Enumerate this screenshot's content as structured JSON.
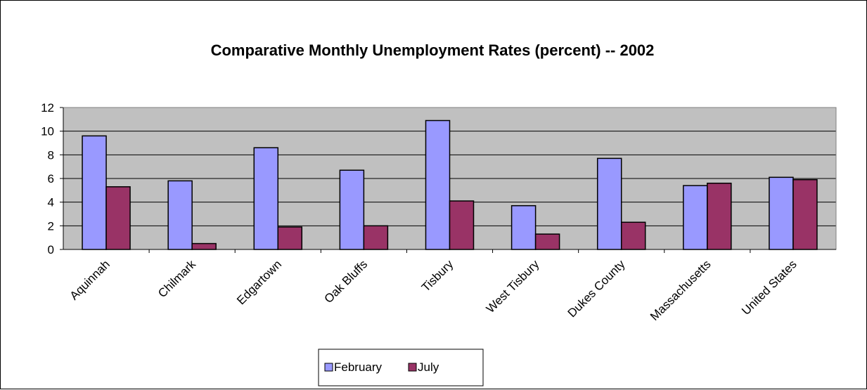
{
  "chart_data": {
    "type": "bar",
    "title": "Comparative Monthly Unemployment Rates (percent) -- 2002",
    "xlabel": "",
    "ylabel": "",
    "categories": [
      "Aquinnah",
      "Chilmark",
      "Edgartown",
      "Oak Bluffs",
      "Tisbury",
      "West Tisbury",
      "Dukes County",
      "Massachusetts",
      "United States"
    ],
    "series": [
      {
        "name": "February",
        "values": [
          9.6,
          5.8,
          8.6,
          6.7,
          10.9,
          3.7,
          7.7,
          5.4,
          6.1
        ],
        "color": "#9999ff"
      },
      {
        "name": "July",
        "values": [
          5.3,
          0.5,
          1.9,
          2.0,
          4.1,
          1.3,
          2.3,
          5.6,
          5.9
        ],
        "color": "#993366"
      }
    ],
    "ylim": [
      0,
      12
    ],
    "yticks": [
      "0",
      "2",
      "4",
      "6",
      "8",
      "10",
      "12"
    ],
    "grid": true,
    "plot_background": "#c0c0c0",
    "legend_position": "bottom"
  }
}
